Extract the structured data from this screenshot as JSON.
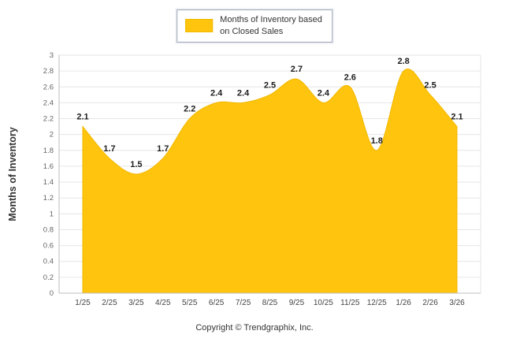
{
  "legend": {
    "line1": "Months of Inventory based",
    "line2": "on Closed Sales"
  },
  "ylabel": "Months of Inventory",
  "footer": {
    "copyright": "Copyright © Trendgraphix, Inc."
  },
  "colors": {
    "area": "#FFC40D",
    "area_edge": "#F2B800",
    "grid": "#e6e6e6",
    "axis": "#bdbdbd",
    "ytick_text": "#666666",
    "xtick_text": "#444444",
    "point_label_text": "#1c1c1c"
  },
  "chart_data": {
    "type": "area",
    "series_name": "Months of Inventory based on Closed Sales",
    "categories": [
      "1/25",
      "2/25",
      "3/25",
      "4/25",
      "5/25",
      "6/25",
      "7/25",
      "8/25",
      "9/25",
      "10/25",
      "11/25",
      "12/25",
      "1/26",
      "2/26",
      "3/26"
    ],
    "values": [
      2.1,
      1.7,
      1.5,
      1.7,
      2.2,
      2.4,
      2.4,
      2.5,
      2.7,
      2.4,
      2.6,
      1.8,
      2.8,
      2.5,
      2.1
    ],
    "title": "",
    "xlabel": "",
    "ylabel": "Months of Inventory",
    "ylim": [
      0,
      3
    ],
    "ytick_step": 0.2,
    "grid": true,
    "legend_position": "top"
  }
}
